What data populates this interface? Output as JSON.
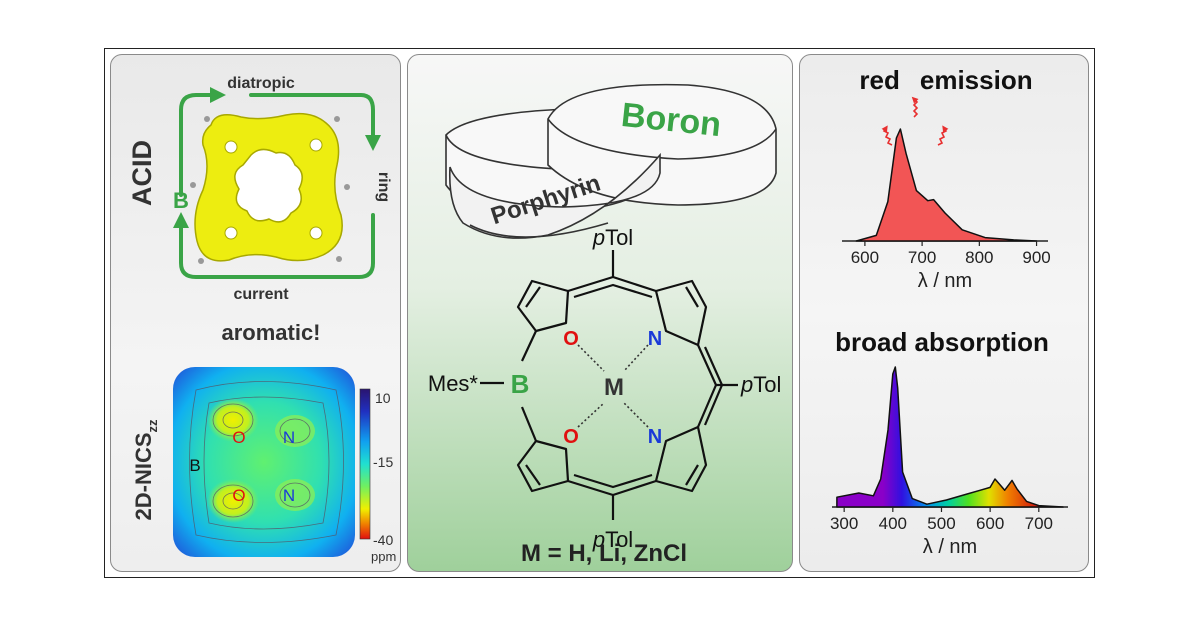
{
  "left": {
    "acid_label": "ACID",
    "ring_current": {
      "top": "diatropic",
      "right": "ring",
      "bottom": "current",
      "left_atom": "B"
    },
    "aromatic": "aromatic!",
    "nics_label": "2D-NICS",
    "nics_sub": "zz",
    "map_atoms": {
      "B": "B",
      "O1": "O",
      "N1": "N",
      "O2": "O",
      "N2": "N"
    },
    "colorbar": {
      "max": "10",
      "mid": "-15",
      "min": "-40",
      "unit": "ppm"
    },
    "colors": {
      "ring_arrow": "#3aa447",
      "acid_yellow": "#f0f000"
    }
  },
  "middle": {
    "ring_boron": "Boron",
    "ring_porphyrin": "Porphyrin",
    "ptol": "Tol",
    "ptol_prefix": "p",
    "mes": "Mes*",
    "atoms": {
      "B": "B",
      "O": "O",
      "N": "N",
      "M": "M"
    },
    "metals": "M = H, Li, ZnCl",
    "colors": {
      "boron_green": "#3aa447",
      "oxygen_red": "#e01010",
      "nitrogen_blue": "#1a3ad8"
    }
  },
  "right": {
    "emission_title_1": "red",
    "emission_title_2": "emission",
    "absorption_title": "broad absorption",
    "x_axis_label": "λ / nm",
    "colors": {
      "emission_fill": "#f25555",
      "emission_arrows": "#e83030"
    }
  },
  "chart_data": [
    {
      "type": "area",
      "title": "red emission",
      "xlabel": "λ / nm",
      "ylabel": "",
      "xlim": [
        560,
        920
      ],
      "x_ticks": [
        "600",
        "700",
        "800",
        "900"
      ],
      "x": [
        585,
        620,
        640,
        655,
        662,
        672,
        690,
        710,
        720,
        740,
        770,
        810,
        860,
        900
      ],
      "y": [
        0.0,
        0.05,
        0.35,
        0.92,
        1.0,
        0.78,
        0.45,
        0.36,
        0.37,
        0.25,
        0.1,
        0.03,
        0.01,
        0.0
      ]
    },
    {
      "type": "area",
      "title": "broad absorption",
      "xlabel": "λ / nm",
      "ylabel": "",
      "xlim": [
        275,
        760
      ],
      "x_ticks": [
        "300",
        "400",
        "500",
        "600",
        "700"
      ],
      "x": [
        285,
        330,
        360,
        375,
        390,
        400,
        405,
        410,
        420,
        440,
        470,
        510,
        550,
        580,
        600,
        610,
        620,
        630,
        645,
        655,
        675,
        700,
        750
      ],
      "y": [
        0.07,
        0.1,
        0.08,
        0.2,
        0.55,
        0.95,
        1.0,
        0.85,
        0.25,
        0.06,
        0.02,
        0.05,
        0.09,
        0.12,
        0.14,
        0.2,
        0.16,
        0.12,
        0.19,
        0.13,
        0.04,
        0.01,
        0.0
      ]
    }
  ]
}
